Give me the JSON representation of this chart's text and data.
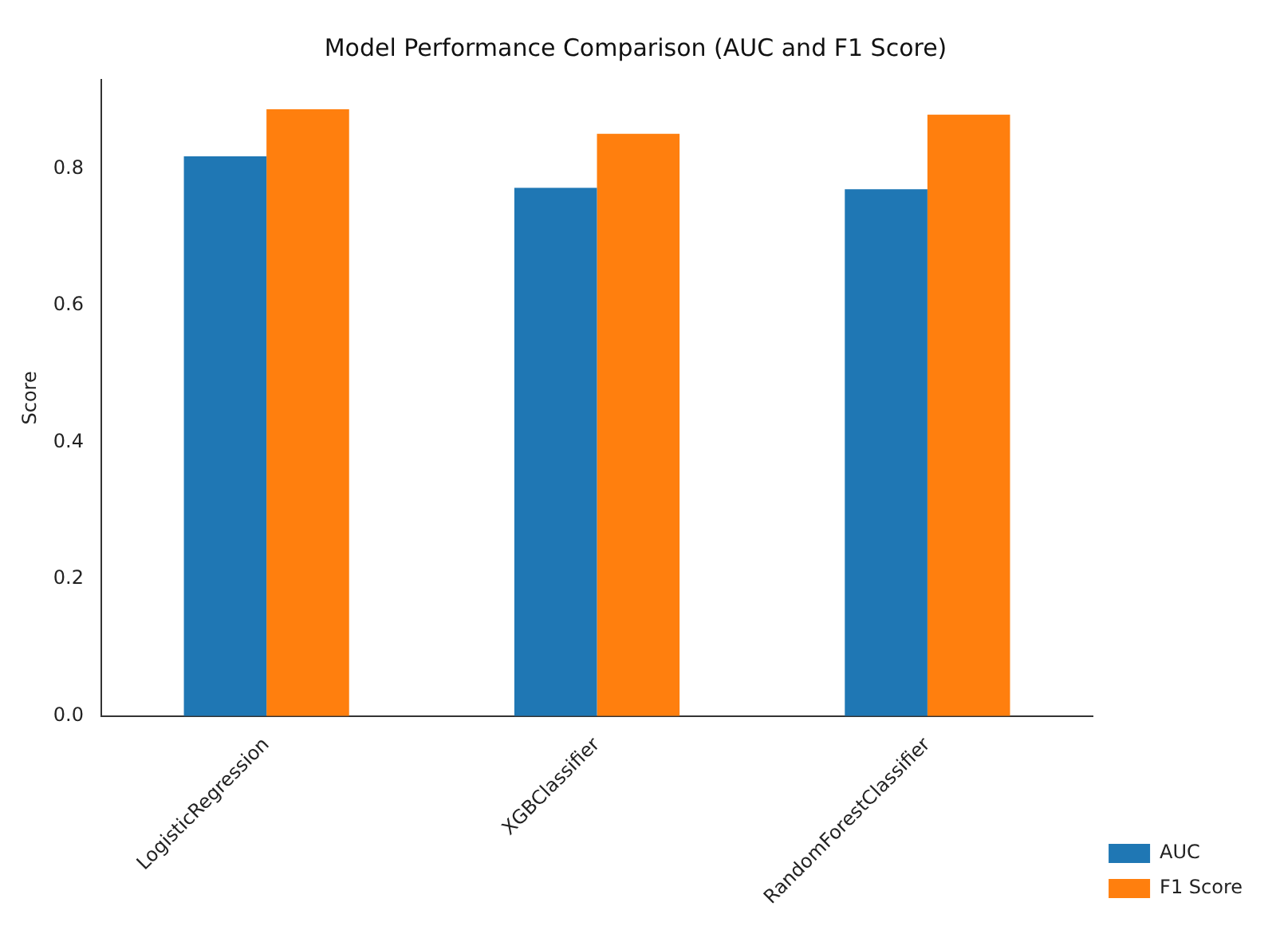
{
  "chart_data": {
    "type": "bar",
    "title": "Model Performance Comparison (AUC and F1 Score)",
    "ylabel": "Score",
    "categories": [
      "LogisticRegression",
      "XGBClassifier",
      "RandomForestClassifier"
    ],
    "series": [
      {
        "name": "AUC",
        "color": "#1f77b4",
        "values": [
          0.818,
          0.772,
          0.77
        ]
      },
      {
        "name": "F1 Score",
        "color": "#ff7f0e",
        "values": [
          0.887,
          0.851,
          0.879
        ]
      }
    ],
    "ylim": [
      0,
      0.93
    ],
    "yticks": [
      {
        "value": 0,
        "label": "0.0"
      },
      {
        "value": 0.2,
        "label": "0.2"
      },
      {
        "value": 0.4,
        "label": "0.4"
      },
      {
        "value": 0.6,
        "label": "0.6"
      },
      {
        "value": 0.8,
        "label": "0.8"
      }
    ],
    "grid": false,
    "legend": "bottom right"
  }
}
